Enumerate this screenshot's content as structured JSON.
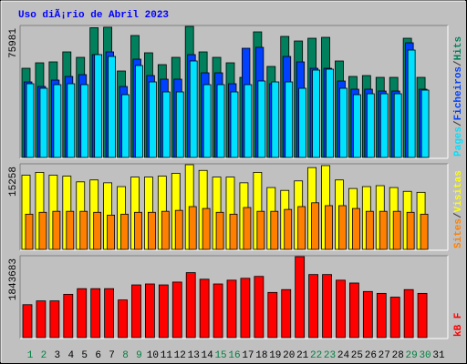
{
  "chart_data": [
    {
      "type": "bar",
      "title": "Uso diÃ¡rio de Abril 2023",
      "categories": [
        "1",
        "2",
        "3",
        "4",
        "5",
        "6",
        "7",
        "8",
        "9",
        "10",
        "11",
        "12",
        "13",
        "14",
        "15",
        "16",
        "17",
        "18",
        "19",
        "20",
        "21",
        "22",
        "23",
        "24",
        "25",
        "26",
        "27",
        "28",
        "29",
        "30",
        "31"
      ],
      "label_colors": [
        "#008040",
        "#008040",
        "#000000",
        "#000000",
        "#000000",
        "#000000",
        "#000000",
        "#008040",
        "#008040",
        "#000000",
        "#000000",
        "#000000",
        "#000000",
        "#000000",
        "#008040",
        "#008040",
        "#000000",
        "#000000",
        "#000000",
        "#000000",
        "#000000",
        "#008040",
        "#008040",
        "#000000",
        "#000000",
        "#000000",
        "#000000",
        "#000000",
        "#008040",
        "#008040",
        "#000000"
      ],
      "legend_separator": "/",
      "ylim": [
        0,
        75981
      ],
      "yticks": [
        75981
      ],
      "series": [
        {
          "name": "Hits",
          "color": "#00805c",
          "values": [
            51706,
            54870,
            55400,
            61200,
            58036,
            75200,
            75500,
            50122,
            70700,
            60676,
            53815,
            58036,
            75981,
            61200,
            58036,
            54870,
            46430,
            72810,
            52760,
            70170,
            67530,
            69110,
            69640,
            55930,
            46960,
            47480,
            46430,
            46430,
            69110,
            46430,
            null
          ]
        },
        {
          "name": "Ficheiros",
          "color": "#0040ff",
          "values": [
            43790,
            41150,
            44850,
            46960,
            48010,
            59620,
            61200,
            41150,
            56980,
            47480,
            45370,
            45370,
            59620,
            49070,
            49070,
            42740,
            63310,
            63840,
            42740,
            58560,
            55400,
            51700,
            51700,
            44320,
            39570,
            39570,
            38510,
            38510,
            66480,
            39570,
            null
          ]
        },
        {
          "name": "Pages",
          "color": "#00e0ff",
          "values": [
            42740,
            40100,
            42210,
            42740,
            42210,
            59620,
            58560,
            36400,
            53290,
            43790,
            37990,
            37990,
            55930,
            42210,
            42210,
            37990,
            42210,
            44320,
            43790,
            43790,
            40100,
            50650,
            51180,
            40100,
            36400,
            36930,
            36930,
            36930,
            62260,
            39040,
            null
          ]
        }
      ]
    },
    {
      "type": "bar",
      "ylim": [
        0,
        15258
      ],
      "yticks": [
        15258
      ],
      "series": [
        {
          "name": "Visitas",
          "color": "#ffff00",
          "values": [
            13370,
            13880,
            13370,
            13200,
            12170,
            12510,
            12000,
            11310,
            13030,
            13030,
            13200,
            13710,
            15258,
            14230,
            13030,
            13030,
            12000,
            13880,
            11140,
            10630,
            12340,
            14740,
            15100,
            12510,
            10970,
            11310,
            11480,
            11140,
            10460,
            10280,
            null
          ]
        },
        {
          "name": "Sites",
          "color": "#ff8000",
          "values": [
            6340,
            6680,
            6860,
            6860,
            6860,
            6680,
            6170,
            6340,
            6680,
            6680,
            6860,
            7030,
            7710,
            7370,
            6680,
            6340,
            7540,
            6860,
            6860,
            7200,
            7710,
            8400,
            7880,
            7880,
            7370,
            6860,
            6860,
            6860,
            6680,
            6340,
            null
          ]
        }
      ]
    },
    {
      "type": "bar",
      "ylim": [
        0,
        1843683
      ],
      "yticks": [
        1843683
      ],
      "series": [
        {
          "name": "kB F",
          "color": "#ff0000",
          "values": [
            750330,
            836080,
            836080,
            986150,
            1114780,
            1114780,
            1114780,
            857520,
            1200530,
            1221970,
            1200530,
            1264840,
            1479220,
            1329160,
            1221970,
            1307720,
            1350600,
            1393470,
            1029020,
            1093340,
            1843683,
            1436350,
            1436350,
            1307720,
            1243400,
            1050460,
            1007590,
            921830,
            1093340,
            1007590,
            null
          ]
        }
      ]
    }
  ]
}
